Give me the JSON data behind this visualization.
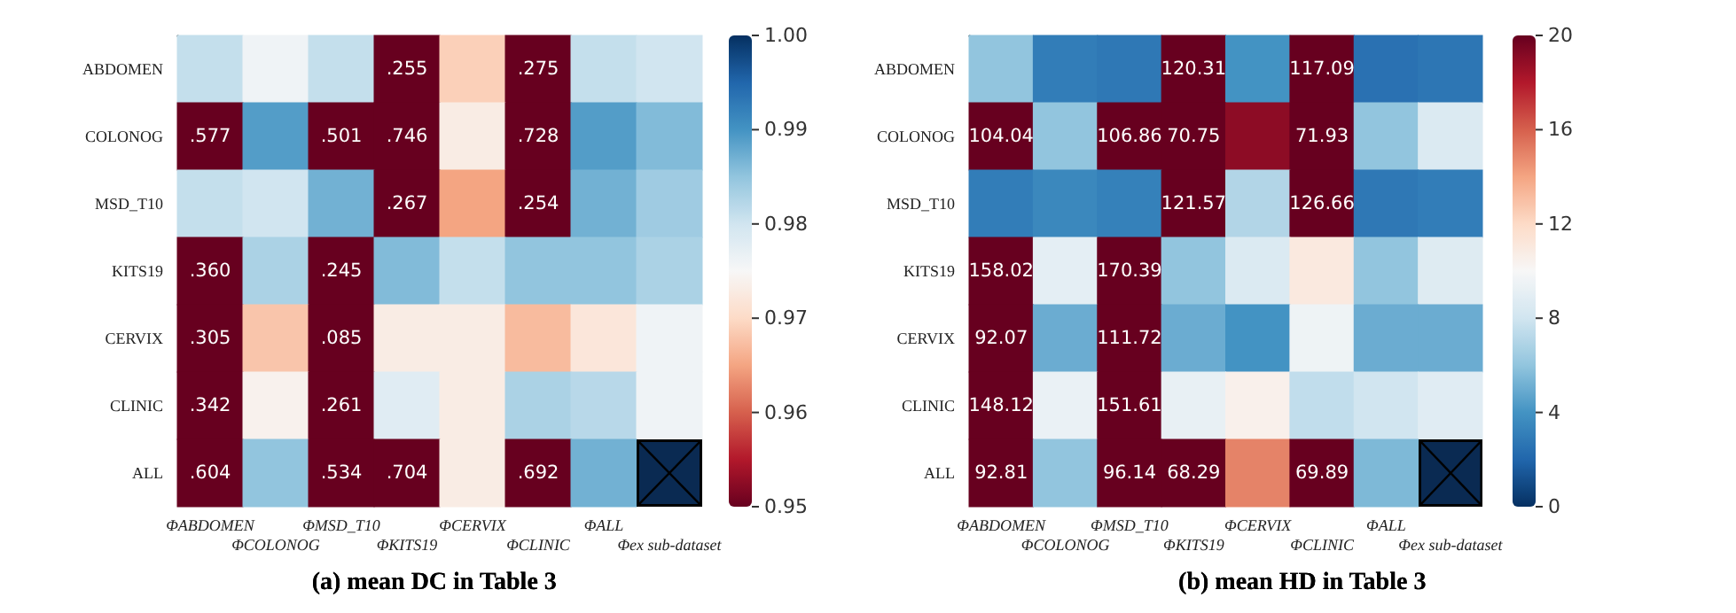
{
  "chart_data": [
    {
      "type": "heatmap",
      "title": "(a) mean DC in Table 3",
      "categories": [
        "ΦABDOMEN",
        "ΦCOLONOG",
        "ΦMSD_T10",
        "ΦKITS19",
        "ΦCERVIX",
        "ΦCLINIC",
        "ΦALL",
        "Φex sub-dataset"
      ],
      "y_categories": [
        "ABDOMEN",
        "COLONOG",
        "MSD_T10",
        "KITS19",
        "CERVIX",
        "CLINIC",
        "ALL"
      ],
      "cells": [
        [
          0.981,
          0.976,
          0.981,
          0.255,
          0.969,
          0.275,
          0.981,
          0.98
        ],
        [
          0.577,
          0.989,
          0.501,
          0.746,
          0.973,
          0.728,
          0.989,
          0.986
        ],
        [
          0.981,
          0.98,
          0.987,
          0.267,
          0.965,
          0.254,
          0.987,
          0.984
        ],
        [
          0.36,
          0.983,
          0.245,
          0.986,
          0.981,
          0.985,
          0.985,
          0.983
        ],
        [
          0.305,
          0.968,
          0.085,
          0.973,
          0.973,
          0.967,
          0.972,
          0.976
        ],
        [
          0.342,
          0.974,
          0.261,
          0.978,
          0.973,
          0.983,
          0.982,
          0.976
        ],
        [
          0.604,
          0.985,
          0.534,
          0.704,
          0.973,
          0.692,
          0.987,
          null
        ]
      ],
      "cell_labels": [
        [
          null,
          null,
          null,
          ".255",
          null,
          ".275",
          null,
          null
        ],
        [
          ".577",
          null,
          ".501",
          ".746",
          null,
          ".728",
          null,
          null
        ],
        [
          null,
          null,
          null,
          ".267",
          null,
          ".254",
          null,
          null
        ],
        [
          ".360",
          null,
          ".245",
          null,
          null,
          null,
          null,
          null
        ],
        [
          ".305",
          null,
          ".085",
          null,
          null,
          null,
          null,
          null
        ],
        [
          ".342",
          null,
          ".261",
          null,
          null,
          null,
          null,
          null
        ],
        [
          ".604",
          null,
          ".534",
          ".704",
          null,
          ".692",
          null,
          null
        ]
      ],
      "clim": [
        0.95,
        1.0
      ],
      "cticks": [
        {
          "value": 0.95,
          "label": "0.95"
        },
        {
          "value": 0.96,
          "label": "0.96"
        },
        {
          "value": 0.97,
          "label": "0.97"
        },
        {
          "value": 0.98,
          "label": "0.98"
        },
        {
          "value": 0.99,
          "label": "0.99"
        },
        {
          "value": 1.0,
          "label": "1.00"
        }
      ]
    },
    {
      "type": "heatmap",
      "title": "(b) mean HD in Table 3",
      "categories": [
        "ΦABDOMEN",
        "ΦCOLONOG",
        "ΦMSD_T10",
        "ΦKITS19",
        "ΦCERVIX",
        "ΦCLINIC",
        "ΦALL",
        "Φex sub-dataset"
      ],
      "y_categories": [
        "ABDOMEN",
        "COLONOG",
        "MSD_T10",
        "KITS19",
        "CERVIX",
        "CLINIC",
        "ALL"
      ],
      "cells": [
        [
          6,
          3,
          2.8,
          120.31,
          4,
          117.09,
          2.5,
          2.7
        ],
        [
          104.04,
          6,
          106.86,
          70.75,
          19,
          71.93,
          6,
          8.5
        ],
        [
          3,
          3.5,
          3.2,
          121.57,
          7,
          126.66,
          2.8,
          3
        ],
        [
          158.02,
          9,
          170.39,
          6,
          8.5,
          11,
          6,
          8.7
        ],
        [
          92.07,
          5,
          111.72,
          5,
          4,
          9.5,
          5,
          5
        ],
        [
          148.12,
          9.3,
          151.61,
          9.2,
          10.5,
          7.5,
          8,
          8.8
        ],
        [
          92.81,
          6,
          96.14,
          68.29,
          15,
          69.89,
          5.5,
          null
        ]
      ],
      "cell_labels": [
        [
          null,
          null,
          null,
          "120.31",
          null,
          "117.09",
          null,
          null
        ],
        [
          "104.04",
          null,
          "106.86",
          "70.75",
          null,
          "71.93",
          null,
          null
        ],
        [
          null,
          null,
          null,
          "121.57",
          null,
          "126.66",
          null,
          null
        ],
        [
          "158.02",
          null,
          "170.39",
          null,
          null,
          null,
          null,
          null
        ],
        [
          "92.07",
          null,
          "111.72",
          null,
          null,
          null,
          null,
          null
        ],
        [
          "148.12",
          null,
          "151.61",
          null,
          null,
          null,
          null,
          null
        ],
        [
          "92.81",
          null,
          "96.14",
          "68.29",
          null,
          "69.89",
          null,
          null
        ]
      ],
      "clim": [
        0,
        20
      ],
      "cticks": [
        0,
        4,
        8,
        12,
        16,
        20
      ]
    }
  ]
}
